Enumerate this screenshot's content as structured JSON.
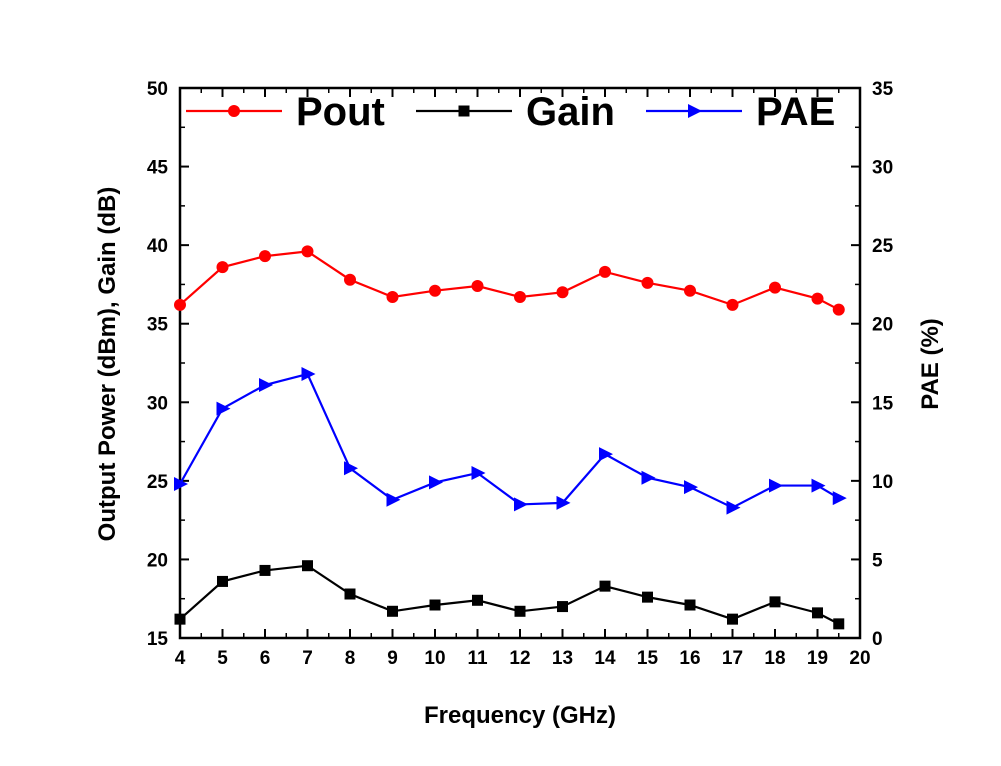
{
  "chart_data": {
    "type": "line",
    "xlabel": "Frequency (GHz)",
    "ylabel": "Output Power (dBm), Gain (dB)",
    "y2label": "PAE (%)",
    "xlim": [
      4,
      20
    ],
    "ylim": [
      15,
      50
    ],
    "y2lim": [
      0,
      35
    ],
    "x_ticks": [
      4,
      5,
      6,
      7,
      8,
      9,
      10,
      11,
      12,
      13,
      14,
      15,
      16,
      17,
      18,
      19,
      20
    ],
    "y_ticks": [
      15,
      20,
      25,
      30,
      35,
      40,
      45,
      50
    ],
    "y2_ticks": [
      0,
      5,
      10,
      15,
      20,
      25,
      30,
      35
    ],
    "x": [
      4,
      5,
      6,
      7,
      8,
      9,
      10,
      11,
      12,
      13,
      14,
      15,
      16,
      17,
      18,
      19,
      19.5
    ],
    "legend_placement": "top",
    "grid": false,
    "series": [
      {
        "name": "Pout",
        "axis": "left",
        "color": "#ff0000",
        "marker": "circle",
        "values": [
          36.2,
          38.6,
          39.3,
          39.6,
          37.8,
          36.7,
          37.1,
          37.4,
          36.7,
          37.0,
          38.3,
          37.6,
          37.1,
          36.2,
          37.3,
          36.6,
          35.9
        ]
      },
      {
        "name": "Gain",
        "axis": "left",
        "color": "#000000",
        "marker": "square",
        "values": [
          16.2,
          18.6,
          19.3,
          19.6,
          17.8,
          16.7,
          17.1,
          17.4,
          16.7,
          17.0,
          18.3,
          17.6,
          17.1,
          16.2,
          17.3,
          16.6,
          15.9
        ]
      },
      {
        "name": "PAE",
        "axis": "right",
        "color": "#0000ff",
        "marker": "triangle-right",
        "values": [
          9.8,
          14.6,
          16.1,
          16.8,
          10.8,
          8.8,
          9.9,
          10.5,
          8.5,
          8.6,
          11.7,
          10.2,
          9.6,
          8.3,
          9.7,
          9.7,
          8.9
        ]
      }
    ]
  }
}
